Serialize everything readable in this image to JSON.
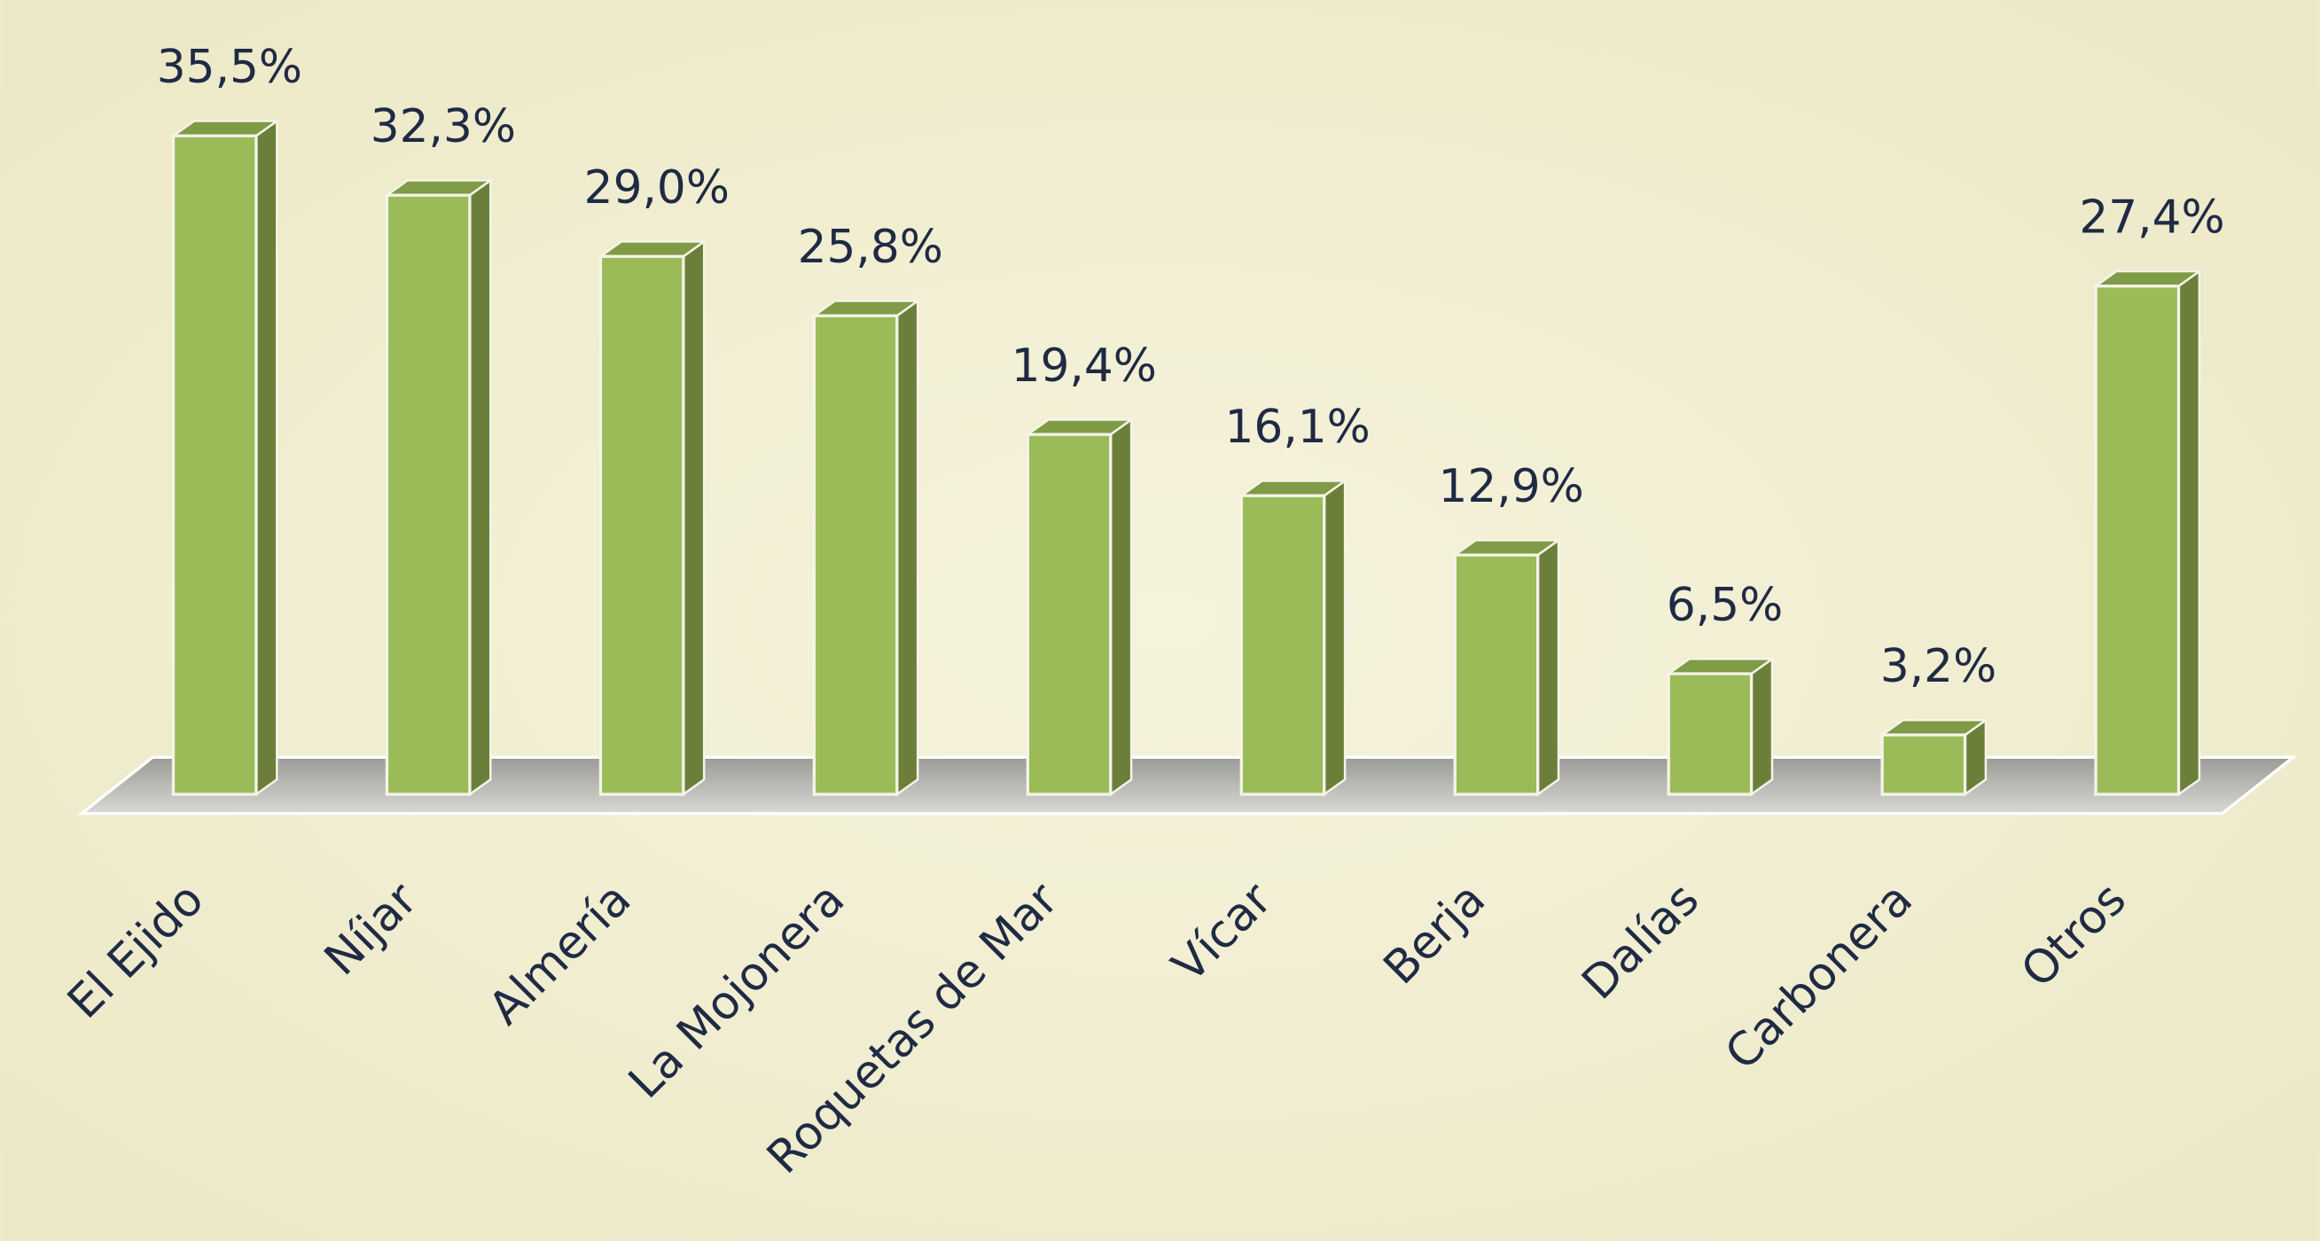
{
  "chart_data": {
    "type": "bar3d",
    "categories": [
      "El Ejido",
      "Níjar",
      "Almería",
      "La Mojonera",
      "Roquetas de Mar",
      "Vícar",
      "Berja",
      "Dalías",
      "Carbonera",
      "Otros"
    ],
    "values": [
      35.5,
      32.3,
      29.0,
      25.8,
      19.4,
      16.1,
      12.9,
      6.5,
      3.2,
      27.4
    ],
    "value_labels": [
      "35,5%",
      "32,3%",
      "29,0%",
      "25,8%",
      "19,4%",
      "16,1%",
      "12,9%",
      "6,5%",
      "3,2%",
      "27,4%"
    ],
    "color": "#9bbb59"
  }
}
